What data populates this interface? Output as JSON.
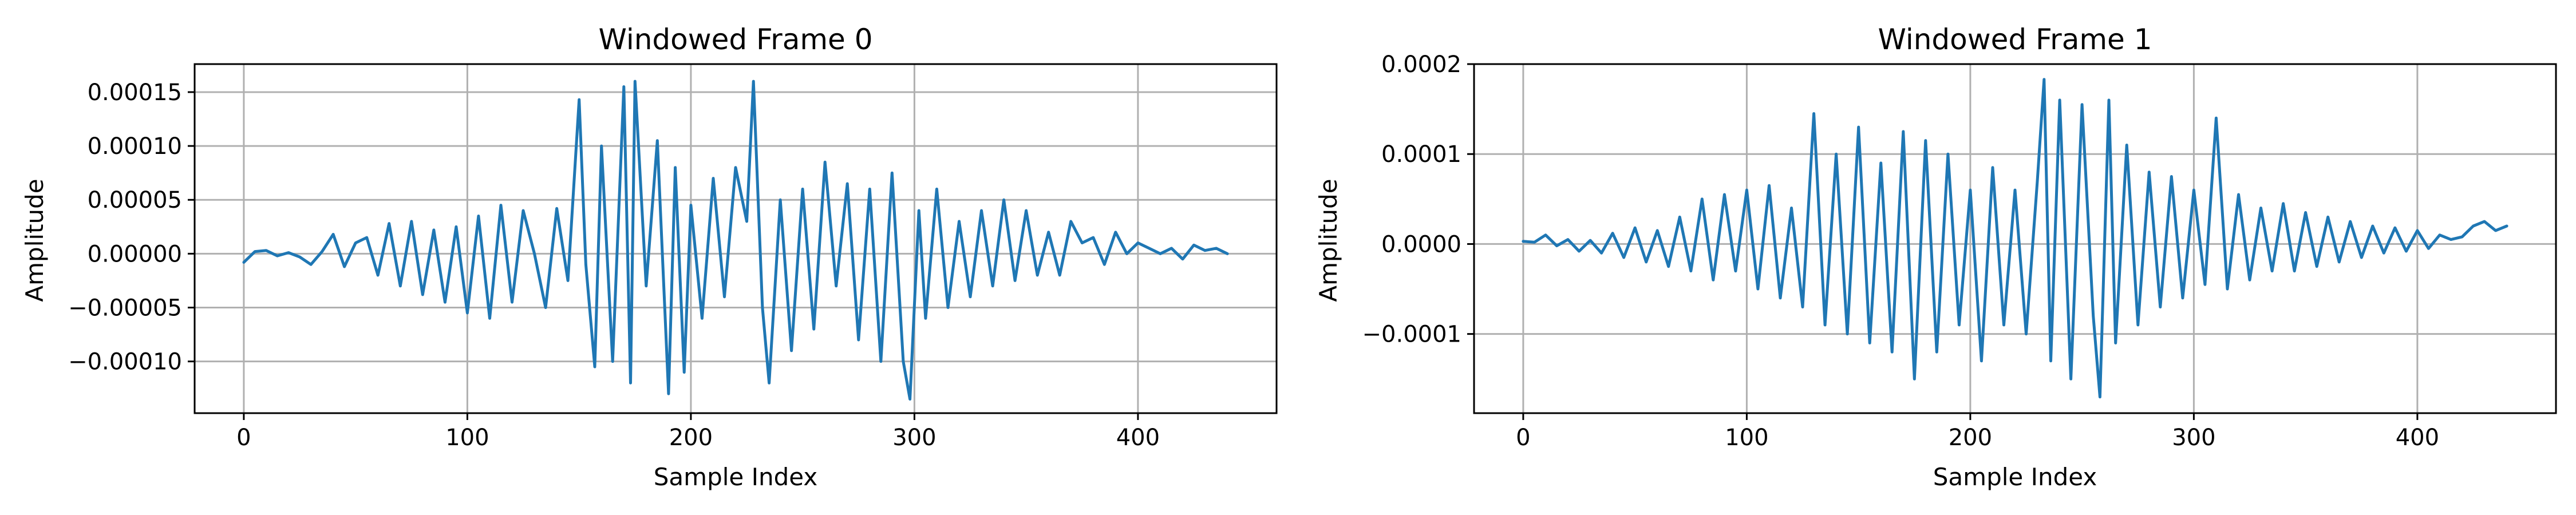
{
  "chart_data": [
    {
      "type": "line",
      "title": "Windowed Frame 0",
      "xlabel": "Sample Index",
      "ylabel": "Amplitude",
      "xlim": [
        -22,
        462
      ],
      "ylim": [
        -0.000148,
        0.000176
      ],
      "xticks": [
        0,
        100,
        200,
        300,
        400
      ],
      "xtick_labels": [
        "0",
        "100",
        "200",
        "300",
        "400"
      ],
      "yticks": [
        -0.0001,
        -5e-05,
        0,
        5e-05,
        0.0001,
        0.00015
      ],
      "ytick_labels": [
        "−0.00010",
        "−0.00005",
        "0.00000",
        "0.00005",
        "0.00010",
        "0.00015"
      ],
      "grid": true,
      "color": "#1f77b4",
      "series": [
        {
          "x": [
            0,
            5,
            10,
            15,
            20,
            25,
            30,
            35,
            40,
            45,
            50,
            55,
            60,
            65,
            70,
            75,
            80,
            85,
            90,
            95,
            100,
            105,
            110,
            115,
            120,
            125,
            130,
            135,
            140,
            145,
            150,
            153,
            157,
            160,
            165,
            170,
            173,
            175,
            180,
            185,
            190,
            193,
            197,
            200,
            205,
            210,
            215,
            220,
            225,
            228,
            232,
            235,
            240,
            245,
            250,
            255,
            260,
            265,
            270,
            275,
            280,
            285,
            290,
            295,
            298,
            302,
            305,
            310,
            315,
            320,
            325,
            330,
            335,
            340,
            345,
            350,
            355,
            360,
            365,
            370,
            375,
            380,
            385,
            390,
            395,
            400,
            405,
            410,
            415,
            420,
            425,
            430,
            435,
            440
          ],
          "values": [
            -8e-06,
            2e-06,
            3e-06,
            -2e-06,
            1e-06,
            -3e-06,
            -1e-05,
            2e-06,
            1.8e-05,
            -1.2e-05,
            1e-05,
            1.5e-05,
            -2e-05,
            2.8e-05,
            -3e-05,
            3e-05,
            -3.8e-05,
            2.2e-05,
            -4.5e-05,
            2.5e-05,
            -5.5e-05,
            3.5e-05,
            -6e-05,
            4.5e-05,
            -4.5e-05,
            4e-05,
            0.0,
            -5e-05,
            4.2e-05,
            -2.5e-05,
            0.000143,
            -1e-05,
            -0.000105,
            0.0001,
            -0.0001,
            0.000155,
            -0.00012,
            0.00016,
            -3e-05,
            0.000105,
            -0.00013,
            8e-05,
            -0.00011,
            4.5e-05,
            -6e-05,
            7e-05,
            -4e-05,
            8e-05,
            3e-05,
            0.00016,
            -5e-05,
            -0.00012,
            5e-05,
            -9e-05,
            6e-05,
            -7e-05,
            8.5e-05,
            -3e-05,
            6.5e-05,
            -8e-05,
            6e-05,
            -0.0001,
            7.5e-05,
            -0.0001,
            -0.000135,
            4e-05,
            -6e-05,
            6e-05,
            -5e-05,
            3e-05,
            -4e-05,
            4e-05,
            -3e-05,
            5e-05,
            -2.5e-05,
            4e-05,
            -2e-05,
            2e-05,
            -2e-05,
            3e-05,
            1e-05,
            1.5e-05,
            -1e-05,
            2e-05,
            0.0,
            1e-05,
            5e-06,
            0.0,
            5e-06,
            -5e-06,
            8e-06,
            3e-06,
            5e-06,
            0.0
          ]
        }
      ]
    },
    {
      "type": "line",
      "title": "Windowed Frame 1",
      "xlabel": "Sample Index",
      "ylabel": "Amplitude",
      "xlim": [
        -22,
        462
      ],
      "ylim": [
        -0.000188,
        0.0002
      ],
      "xticks": [
        0,
        100,
        200,
        300,
        400
      ],
      "xtick_labels": [
        "0",
        "100",
        "200",
        "300",
        "400"
      ],
      "yticks": [
        -0.0001,
        0,
        0.0001,
        0.0002
      ],
      "ytick_labels": [
        "−0.0001",
        "0.0000",
        "0.0001",
        "0.0002"
      ],
      "grid": true,
      "color": "#1f77b4",
      "series": [
        {
          "x": [
            0,
            5,
            10,
            15,
            20,
            25,
            30,
            35,
            40,
            45,
            50,
            55,
            60,
            65,
            70,
            75,
            80,
            85,
            90,
            95,
            100,
            105,
            110,
            115,
            120,
            125,
            130,
            135,
            140,
            145,
            150,
            155,
            160,
            165,
            170,
            175,
            180,
            185,
            190,
            195,
            200,
            205,
            210,
            215,
            220,
            225,
            230,
            233,
            236,
            240,
            245,
            250,
            255,
            258,
            262,
            265,
            270,
            275,
            280,
            285,
            290,
            295,
            300,
            305,
            310,
            315,
            320,
            325,
            330,
            335,
            340,
            345,
            350,
            355,
            360,
            365,
            370,
            375,
            380,
            385,
            390,
            395,
            400,
            405,
            410,
            415,
            420,
            425,
            430,
            435,
            440
          ],
          "values": [
            3e-06,
            2e-06,
            1e-05,
            -2e-06,
            5e-06,
            -8e-06,
            4e-06,
            -1e-05,
            1.2e-05,
            -1.5e-05,
            1.8e-05,
            -2e-05,
            1.5e-05,
            -2.5e-05,
            3e-05,
            -3e-05,
            5e-05,
            -4e-05,
            5.5e-05,
            -3e-05,
            6e-05,
            -5e-05,
            6.5e-05,
            -6e-05,
            4e-05,
            -7e-05,
            0.000145,
            -9e-05,
            0.0001,
            -0.0001,
            0.00013,
            -0.00011,
            9e-05,
            -0.00012,
            0.000125,
            -0.00015,
            0.000115,
            -0.00012,
            0.0001,
            -9e-05,
            6e-05,
            -0.00013,
            8.5e-05,
            -9e-05,
            6e-05,
            -0.0001,
            7e-05,
            0.000183,
            -0.00013,
            0.00016,
            -0.00015,
            0.000155,
            -8e-05,
            -0.00017,
            0.00016,
            -0.00011,
            0.00011,
            -9e-05,
            8e-05,
            -7e-05,
            7.5e-05,
            -6e-05,
            6e-05,
            -4.5e-05,
            0.00014,
            -5e-05,
            5.5e-05,
            -4e-05,
            4e-05,
            -3e-05,
            4.5e-05,
            -3e-05,
            3.5e-05,
            -2.5e-05,
            3e-05,
            -2e-05,
            2.5e-05,
            -1.5e-05,
            2e-05,
            -1e-05,
            1.8e-05,
            -8e-06,
            1.5e-05,
            -5e-06,
            1e-05,
            5e-06,
            8e-06,
            2e-05,
            2.5e-05,
            1.5e-05,
            2e-05
          ]
        }
      ]
    }
  ]
}
